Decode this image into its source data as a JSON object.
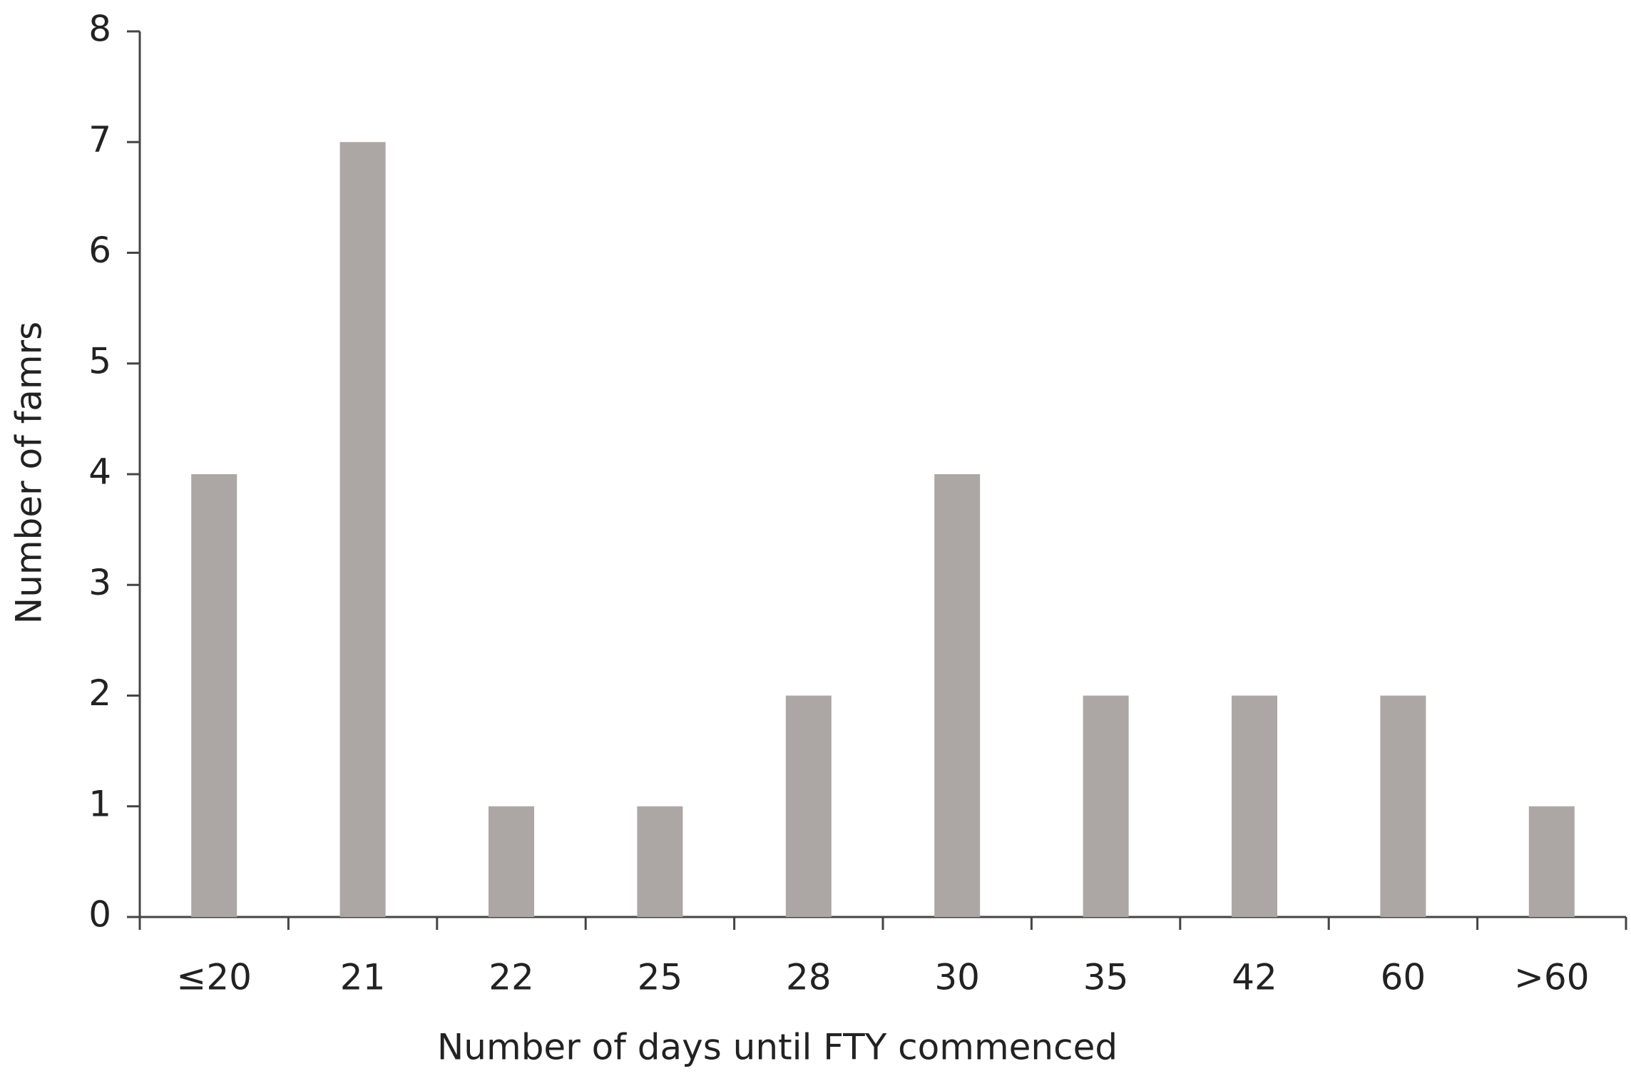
{
  "chart_data": {
    "type": "bar",
    "x_label": "Number of days until FTY commenced",
    "y_label": "Number of famrs",
    "categories": [
      "≤20",
      "21",
      "22",
      "25",
      "28",
      "30",
      "35",
      "42",
      "60",
      ">60"
    ],
    "values": [
      4,
      7,
      1,
      1,
      2,
      4,
      2,
      2,
      2,
      1
    ],
    "color": "#aca7a5",
    "ylim": [
      0,
      8
    ],
    "yticks": [
      0,
      1,
      2,
      3,
      4,
      5,
      6,
      7,
      8
    ],
    "grid": false
  }
}
